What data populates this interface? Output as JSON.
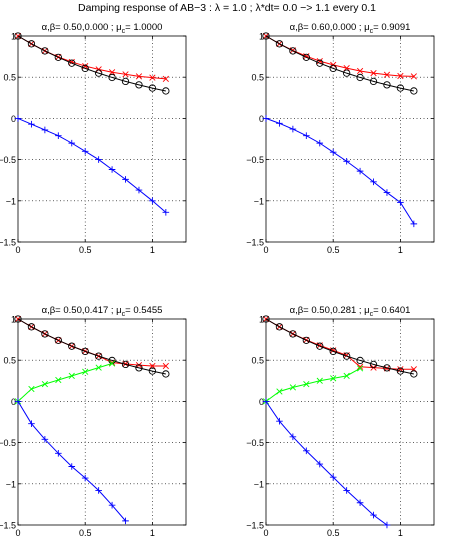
{
  "figure": {
    "title": "Damping response of AB−3 : λ = 1.0 ; λ*dt= 0.0 −> 1.1 every 0.1"
  },
  "chart_data": [
    {
      "type": "line",
      "title_prefix": "α,β= 0.50,0.000 ; μ",
      "title_sub": "c",
      "title_suffix": "= 1.0000",
      "xlim": [
        0,
        1.25
      ],
      "ylim": [
        -1.5,
        1
      ],
      "xticks": [
        0,
        0.5,
        1
      ],
      "yticks": [
        -1.5,
        -1,
        -0.5,
        0,
        0.5,
        1
      ],
      "xtick_labels": [
        "0",
        "0.5",
        "1"
      ],
      "ytick_labels": [
        "−1.5",
        "−1",
        "−0.5",
        "0",
        "0.5",
        "1"
      ],
      "grid": true,
      "x": [
        0,
        0.1,
        0.2,
        0.3,
        0.4,
        0.5,
        0.6,
        0.7,
        0.8,
        0.9,
        1.0,
        1.1
      ],
      "series": [
        {
          "color": "#ff0000",
          "marker": "x",
          "values": [
            1.0,
            0.905,
            0.82,
            0.745,
            0.685,
            0.635,
            0.595,
            0.56,
            0.535,
            0.51,
            0.495,
            0.48
          ]
        },
        {
          "color": "#000000",
          "marker": "o",
          "values": [
            1.0,
            0.905,
            0.819,
            0.741,
            0.67,
            0.607,
            0.549,
            0.497,
            0.449,
            0.407,
            0.368,
            0.333
          ]
        },
        {
          "color": "#0000ff",
          "marker": "+",
          "values": [
            0,
            -0.07,
            -0.14,
            -0.21,
            -0.3,
            -0.4,
            -0.5,
            -0.62,
            -0.74,
            -0.87,
            -1.0,
            -1.14
          ]
        }
      ]
    },
    {
      "type": "line",
      "title_prefix": "α,β= 0.60,0.000 ; μ",
      "title_sub": "c",
      "title_suffix": "= 0.9091",
      "xlim": [
        0,
        1.25
      ],
      "ylim": [
        -1.5,
        1
      ],
      "xticks": [
        0,
        0.5,
        1
      ],
      "yticks": [
        -1.5,
        -1,
        -0.5,
        0,
        0.5,
        1
      ],
      "xtick_labels": [
        "0",
        "0.5",
        "1"
      ],
      "ytick_labels": [
        "−1.5",
        "−1",
        "−0.5",
        "0",
        "0.5",
        "1"
      ],
      "grid": true,
      "x": [
        0,
        0.1,
        0.2,
        0.3,
        0.4,
        0.5,
        0.6,
        0.7,
        0.8,
        0.9,
        1.0,
        1.1
      ],
      "series": [
        {
          "color": "#ff0000",
          "marker": "x",
          "values": [
            1.0,
            0.905,
            0.825,
            0.755,
            0.695,
            0.65,
            0.61,
            0.575,
            0.55,
            0.53,
            0.515,
            0.51
          ]
        },
        {
          "color": "#000000",
          "marker": "o",
          "values": [
            1.0,
            0.905,
            0.819,
            0.741,
            0.67,
            0.607,
            0.549,
            0.497,
            0.449,
            0.407,
            0.368,
            0.333
          ]
        },
        {
          "color": "#0000ff",
          "marker": "+",
          "values": [
            0,
            -0.06,
            -0.13,
            -0.21,
            -0.3,
            -0.41,
            -0.52,
            -0.64,
            -0.77,
            -0.9,
            -1.02,
            -1.28
          ]
        }
      ]
    },
    {
      "type": "line",
      "title_prefix": "α,β= 0.50,0.417 ; μ",
      "title_sub": "c",
      "title_suffix": "= 0.5455",
      "xlim": [
        0,
        1.25
      ],
      "ylim": [
        -1.5,
        1
      ],
      "xticks": [
        0,
        0.5,
        1
      ],
      "yticks": [
        -1.5,
        -1,
        -0.5,
        0,
        0.5,
        1
      ],
      "xtick_labels": [
        "0",
        "0.5",
        "1"
      ],
      "ytick_labels": [
        "−1.5",
        "−1",
        "−0.5",
        "0",
        "0.5",
        "1"
      ],
      "grid": true,
      "x": [
        0,
        0.1,
        0.2,
        0.3,
        0.4,
        0.5,
        0.6,
        0.7,
        0.8,
        0.9,
        1.0,
        1.1
      ],
      "series": [
        {
          "color": "#ff0000",
          "marker": "x",
          "values": [
            1.0,
            0.905,
            0.82,
            0.74,
            0.67,
            0.61,
            0.55,
            0.47,
            0.455,
            0.44,
            0.43,
            0.43
          ]
        },
        {
          "color": "#000000",
          "marker": "o",
          "values": [
            1.0,
            0.905,
            0.819,
            0.741,
            0.67,
            0.607,
            0.549,
            0.497,
            0.449,
            0.407,
            0.368,
            0.333
          ]
        },
        {
          "color": "#00ff00",
          "marker": "x",
          "x": [
            0,
            0.1,
            0.2,
            0.3,
            0.4,
            0.5,
            0.6,
            0.7
          ],
          "values": [
            0,
            0.15,
            0.21,
            0.26,
            0.31,
            0.36,
            0.41,
            0.46
          ]
        },
        {
          "color": "#0000ff",
          "marker": "+",
          "x": [
            0,
            0.1,
            0.2,
            0.3,
            0.4,
            0.5,
            0.6,
            0.7,
            0.8
          ],
          "values": [
            0,
            -0.27,
            -0.46,
            -0.63,
            -0.79,
            -0.93,
            -1.08,
            -1.26,
            -1.45
          ]
        }
      ]
    },
    {
      "type": "line",
      "title_prefix": "α,β= 0.50,0.281 ; μ",
      "title_sub": "c",
      "title_suffix": "= 0.6401",
      "xlim": [
        0,
        1.25
      ],
      "ylim": [
        -1.5,
        1
      ],
      "xticks": [
        0,
        0.5,
        1
      ],
      "yticks": [
        -1.5,
        -1,
        -0.5,
        0,
        0.5,
        1
      ],
      "xtick_labels": [
        "0",
        "0.5",
        "1"
      ],
      "ytick_labels": [
        "−1.5",
        "−1",
        "−0.5",
        "0",
        "0.5",
        "1"
      ],
      "grid": true,
      "x": [
        0,
        0.1,
        0.2,
        0.3,
        0.4,
        0.5,
        0.6,
        0.7,
        0.8,
        0.9,
        1.0,
        1.1
      ],
      "series": [
        {
          "color": "#ff0000",
          "marker": "x",
          "values": [
            1.0,
            0.905,
            0.82,
            0.745,
            0.68,
            0.62,
            0.56,
            0.42,
            0.41,
            0.4,
            0.39,
            0.39
          ]
        },
        {
          "color": "#000000",
          "marker": "o",
          "values": [
            1.0,
            0.905,
            0.819,
            0.741,
            0.67,
            0.607,
            0.549,
            0.497,
            0.449,
            0.407,
            0.368,
            0.333
          ]
        },
        {
          "color": "#00ff00",
          "marker": "x",
          "x": [
            0,
            0.1,
            0.2,
            0.3,
            0.4,
            0.5,
            0.6,
            0.7
          ],
          "values": [
            0,
            0.12,
            0.17,
            0.21,
            0.25,
            0.28,
            0.31,
            0.4
          ]
        },
        {
          "color": "#0000ff",
          "marker": "+",
          "x": [
            0,
            0.1,
            0.2,
            0.3,
            0.4,
            0.5,
            0.6,
            0.7,
            0.8,
            0.9
          ],
          "values": [
            0,
            -0.24,
            -0.43,
            -0.6,
            -0.76,
            -0.92,
            -1.08,
            -1.23,
            -1.38,
            -1.5
          ]
        }
      ]
    }
  ]
}
